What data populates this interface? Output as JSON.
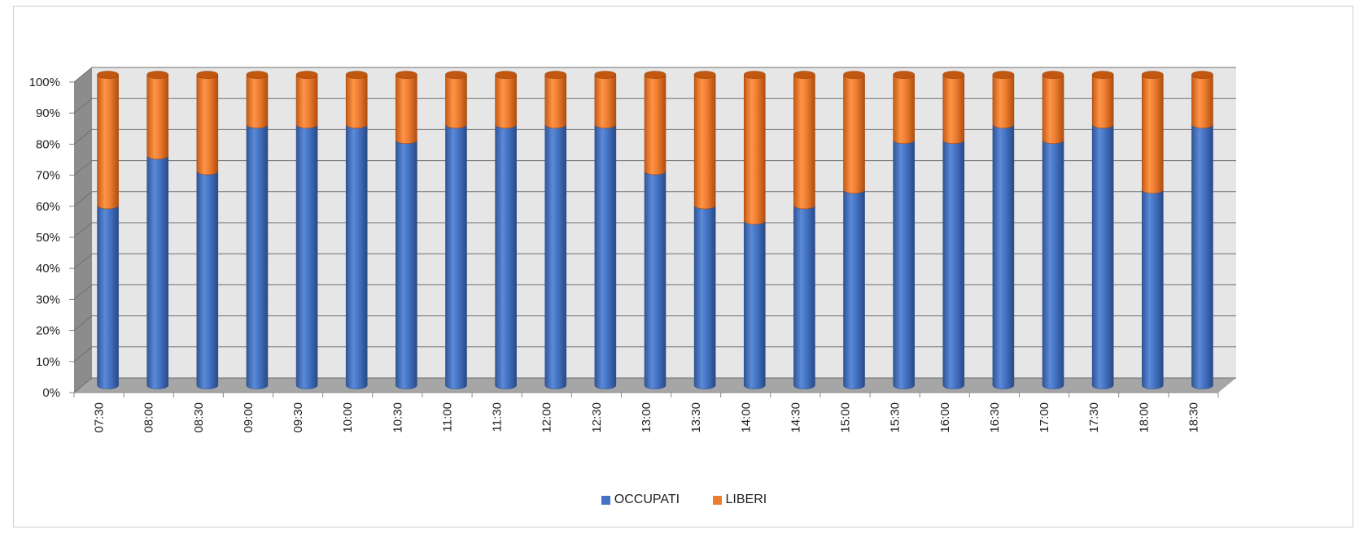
{
  "chart_data": {
    "type": "bar",
    "stacked": "percent",
    "style": "3d-cylinder",
    "categories": [
      "07:30",
      "08:00",
      "08:30",
      "09:00",
      "09:30",
      "10:00",
      "10:30",
      "11:00",
      "11:30",
      "12:00",
      "12:30",
      "13:00",
      "13:30",
      "14:00",
      "14:30",
      "15:00",
      "15:30",
      "16:00",
      "16:30",
      "17:00",
      "17:30",
      "18:00",
      "18:30"
    ],
    "series": [
      {
        "name": "OCCUPATI",
        "color": "#4472C4",
        "values": [
          58,
          74,
          69,
          84,
          84,
          84,
          79,
          84,
          84,
          84,
          84,
          69,
          58,
          53,
          58,
          63,
          79,
          79,
          84,
          79,
          84,
          63,
          84
        ]
      },
      {
        "name": "LIBERI",
        "color": "#ED7D31",
        "values": [
          42,
          26,
          31,
          16,
          16,
          16,
          21,
          16,
          16,
          16,
          16,
          31,
          42,
          47,
          42,
          37,
          21,
          21,
          16,
          21,
          16,
          37,
          16
        ]
      }
    ],
    "yticks": [
      "0%",
      "10%",
      "20%",
      "30%",
      "40%",
      "50%",
      "60%",
      "70%",
      "80%",
      "90%",
      "100%"
    ],
    "ylim": [
      0,
      100
    ],
    "grid": true,
    "legend": "bottom-center",
    "title": "",
    "xlabel": "",
    "ylabel": ""
  }
}
